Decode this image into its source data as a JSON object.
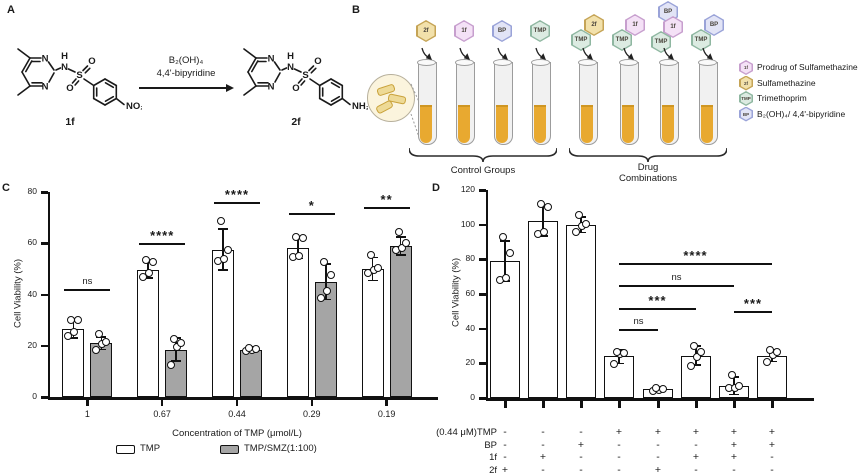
{
  "figure": {
    "panel_labels": {
      "a": "A",
      "b": "B",
      "c": "C",
      "d": "D"
    }
  },
  "panelA": {
    "compound1": {
      "name": "1f",
      "end_group": "NO₂"
    },
    "compound2": {
      "name": "2f",
      "end_group": "NH₂"
    },
    "reagents": {
      "line1": "B₂(OH)₄",
      "line2": "4,4'-bipyridine"
    },
    "atoms": {
      "N": "N",
      "H": "H",
      "S": "S",
      "O": "O"
    }
  },
  "panelB": {
    "chips": {
      "1f": {
        "text": "1f",
        "fill": "#f4e1f6",
        "border": "#c79fce"
      },
      "2f": {
        "text": "2f",
        "fill": "#f2e1ab",
        "border": "#c5a456"
      },
      "TMP": {
        "text": "TMP",
        "fill": "#dcebe2",
        "border": "#8fb7a1"
      },
      "BP": {
        "text": "BP",
        "fill": "#e2e4f6",
        "border": "#9aa3d8"
      }
    },
    "tubes": [
      {
        "labels": [
          "2f"
        ]
      },
      {
        "labels": [
          "1f"
        ]
      },
      {
        "labels": [
          "BP"
        ]
      },
      {
        "labels": [
          "TMP"
        ]
      },
      {
        "labels": [
          "2f",
          "TMP"
        ]
      },
      {
        "labels": [
          "1f",
          "TMP"
        ]
      },
      {
        "labels": [
          "BP",
          "1f",
          "TMP"
        ]
      },
      {
        "labels": [
          "BP",
          "TMP"
        ]
      }
    ],
    "group_labels": {
      "control": "Control Groups",
      "combo_line1": "Drug",
      "combo_line2": "Combinations"
    },
    "legend": [
      {
        "chip": "1f",
        "text": "Prodrug of Sulfamethazine"
      },
      {
        "chip": "2f",
        "text": "Sulfamethazine"
      },
      {
        "chip": "TMP",
        "text": "Trimethoprim"
      },
      {
        "chip": "BP",
        "text": "B₂(OH)₄/ 4,4'-bipyridine"
      }
    ]
  },
  "chart_data": [
    {
      "id": "C",
      "type": "bar",
      "title": "",
      "xlabel": "Concentration of TMP (μmol/L)",
      "ylabel": "Cell Viability (%)",
      "ylim": [
        0,
        80
      ],
      "yticks": [
        0,
        20,
        40,
        60,
        80
      ],
      "grid": false,
      "legend_position": "bottom",
      "categories": [
        "1",
        "0.67",
        "0.44",
        "0.29",
        "0.19"
      ],
      "series": [
        {
          "name": "TMP",
          "fill": "#ffffff",
          "values": [
            26.5,
            49.5,
            57.5,
            58,
            50
          ],
          "sd": [
            3.5,
            3,
            8,
            4,
            4.5
          ],
          "points": [
            [
              24,
              25.5,
              30,
              30
            ],
            [
              47,
              48.5,
              52.5,
              53.5
            ],
            [
              53,
              54,
              57.5,
              68.5
            ],
            [
              54.5,
              55,
              62,
              62.5
            ],
            [
              48.5,
              49.5,
              50.5,
              55.5
            ]
          ]
        },
        {
          "name": "TMP/SMZ(1:100)",
          "fill": "#a5a5a5",
          "values": [
            21,
            18.5,
            18.5,
            45,
            59
          ],
          "sd": [
            2.5,
            4.5,
            1,
            7,
            3.5
          ],
          "points": [
            [
              18.5,
              20.5,
              21.5,
              24.5
            ],
            [
              12.5,
              19.5,
              21,
              22.5
            ],
            [
              17.8,
              18.3,
              18.8,
              19
            ],
            [
              38.5,
              41.5,
              47.5,
              52.5
            ],
            [
              57.5,
              58,
              60,
              64.5
            ]
          ]
        }
      ],
      "significance": [
        {
          "category": 0,
          "label": "ns",
          "y": 42
        },
        {
          "category": 1,
          "label": "****",
          "y": 60
        },
        {
          "category": 2,
          "label": "****",
          "y": 76
        },
        {
          "category": 3,
          "label": "*",
          "y": 72
        },
        {
          "category": 4,
          "label": "**",
          "y": 74
        }
      ]
    },
    {
      "id": "D",
      "type": "bar",
      "title": "",
      "ylabel": "Cell Viability (%)",
      "ylim": [
        0,
        120
      ],
      "yticks": [
        0,
        20,
        40,
        60,
        80,
        100,
        120
      ],
      "grid": false,
      "bar_fill": "#ffffff",
      "values": [
        79,
        102,
        100,
        24,
        5,
        24.5,
        7,
        24.5
      ],
      "sd": [
        11.5,
        8.5,
        4.5,
        4,
        1,
        5.5,
        5,
        3.5
      ],
      "points": [
        [
          68,
          69.5,
          83.5,
          93
        ],
        [
          94.5,
          95.5,
          110,
          112
        ],
        [
          96,
          99,
          100.5,
          105.5
        ],
        [
          19.5,
          25.5,
          26,
          26.5
        ],
        [
          4.3,
          4.7,
          5.1,
          5.5
        ],
        [
          18.5,
          23.5,
          26.5,
          30
        ],
        [
          5.5,
          6,
          6.8,
          13
        ],
        [
          21,
          25,
          26.5,
          27.5
        ]
      ],
      "sig_lines": [
        {
          "from": 3,
          "to": 4,
          "label": "ns",
          "y": 40
        },
        {
          "from": 3,
          "to": 5,
          "label": "***",
          "y": 52
        },
        {
          "from": 3,
          "to": 6,
          "label": "ns",
          "y": 65
        },
        {
          "from": 3,
          "to": 7,
          "label": "****",
          "y": 78
        },
        {
          "from": 6,
          "to": 7,
          "label": "***",
          "y": 50
        }
      ],
      "matrix": {
        "rows": [
          {
            "label": "(0.44 μM)TMP",
            "values": [
              "-",
              "-",
              "-",
              "+",
              "+",
              "+",
              "+",
              "+"
            ]
          },
          {
            "label": "BP",
            "values": [
              "-",
              "-",
              "+",
              "-",
              "-",
              "-",
              "+",
              "+"
            ]
          },
          {
            "label": "1f",
            "values": [
              "-",
              "+",
              "-",
              "-",
              "-",
              "+",
              "+",
              "-"
            ]
          },
          {
            "label": "2f",
            "values": [
              "+",
              "-",
              "-",
              "-",
              "+",
              "-",
              "-",
              "-"
            ]
          }
        ]
      }
    }
  ]
}
